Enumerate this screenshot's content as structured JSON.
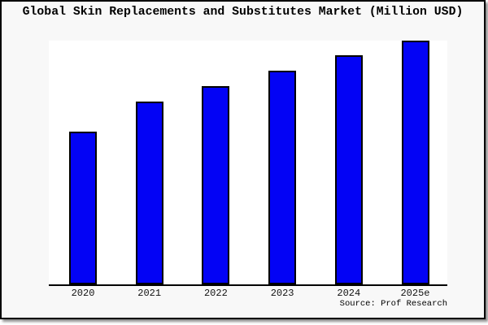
{
  "title": "Global Skin Replacements and Substitutes Market (Million USD)",
  "source": "Source: Prof Research",
  "colors": {
    "bar_fill": "#0303f5",
    "bar_border": "#000000",
    "plot_background": "#ffffff",
    "card_background": "#f8f8f8",
    "frame_border": "#000000"
  },
  "chart_data": {
    "type": "bar",
    "title": "Global Skin Replacements and Substitutes Market (Million USD)",
    "categories": [
      "2020",
      "2021",
      "2022",
      "2023",
      "2024",
      "2025e"
    ],
    "values": [
      188,
      225,
      244,
      263,
      282,
      300
    ],
    "value_note": "relative units estimated from bar heights; chart shows no y-axis, gridlines or data labels",
    "xlabel": "",
    "ylabel": "",
    "ylim": [
      0,
      300
    ],
    "grid": false,
    "legend": false,
    "source": "Source: Prof Research"
  }
}
